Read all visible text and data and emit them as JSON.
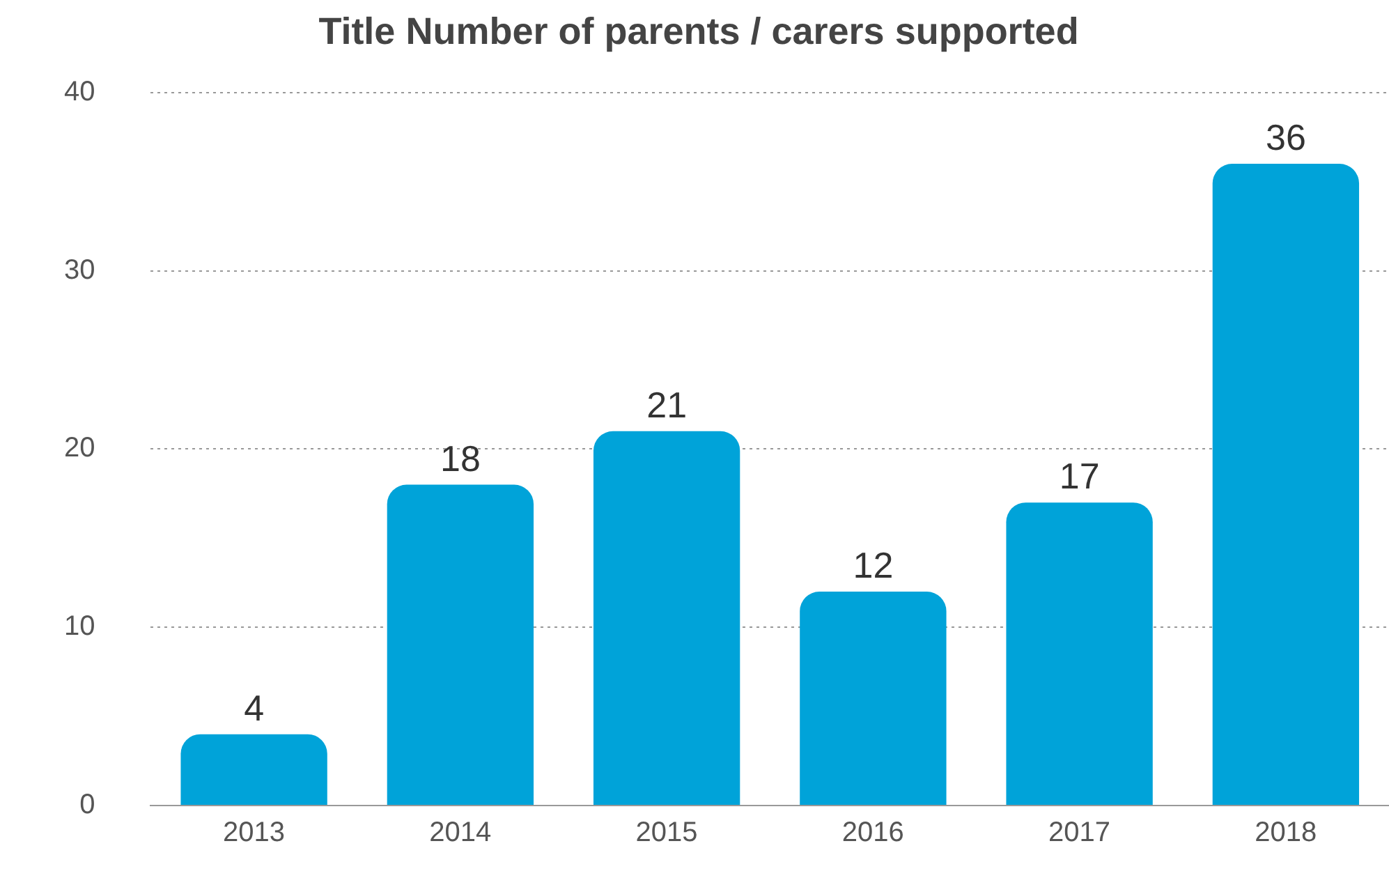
{
  "chart_data": {
    "type": "bar",
    "title": "Title Number of parents / carers supported",
    "categories": [
      "2013",
      "2014",
      "2015",
      "2016",
      "2017",
      "2018"
    ],
    "values": [
      4,
      18,
      21,
      12,
      17,
      36
    ],
    "color": "#00a3d9",
    "ylim": [
      0,
      40
    ],
    "yticks": [
      0,
      10,
      20,
      30,
      40
    ],
    "grid": "y",
    "data_labels": true
  }
}
